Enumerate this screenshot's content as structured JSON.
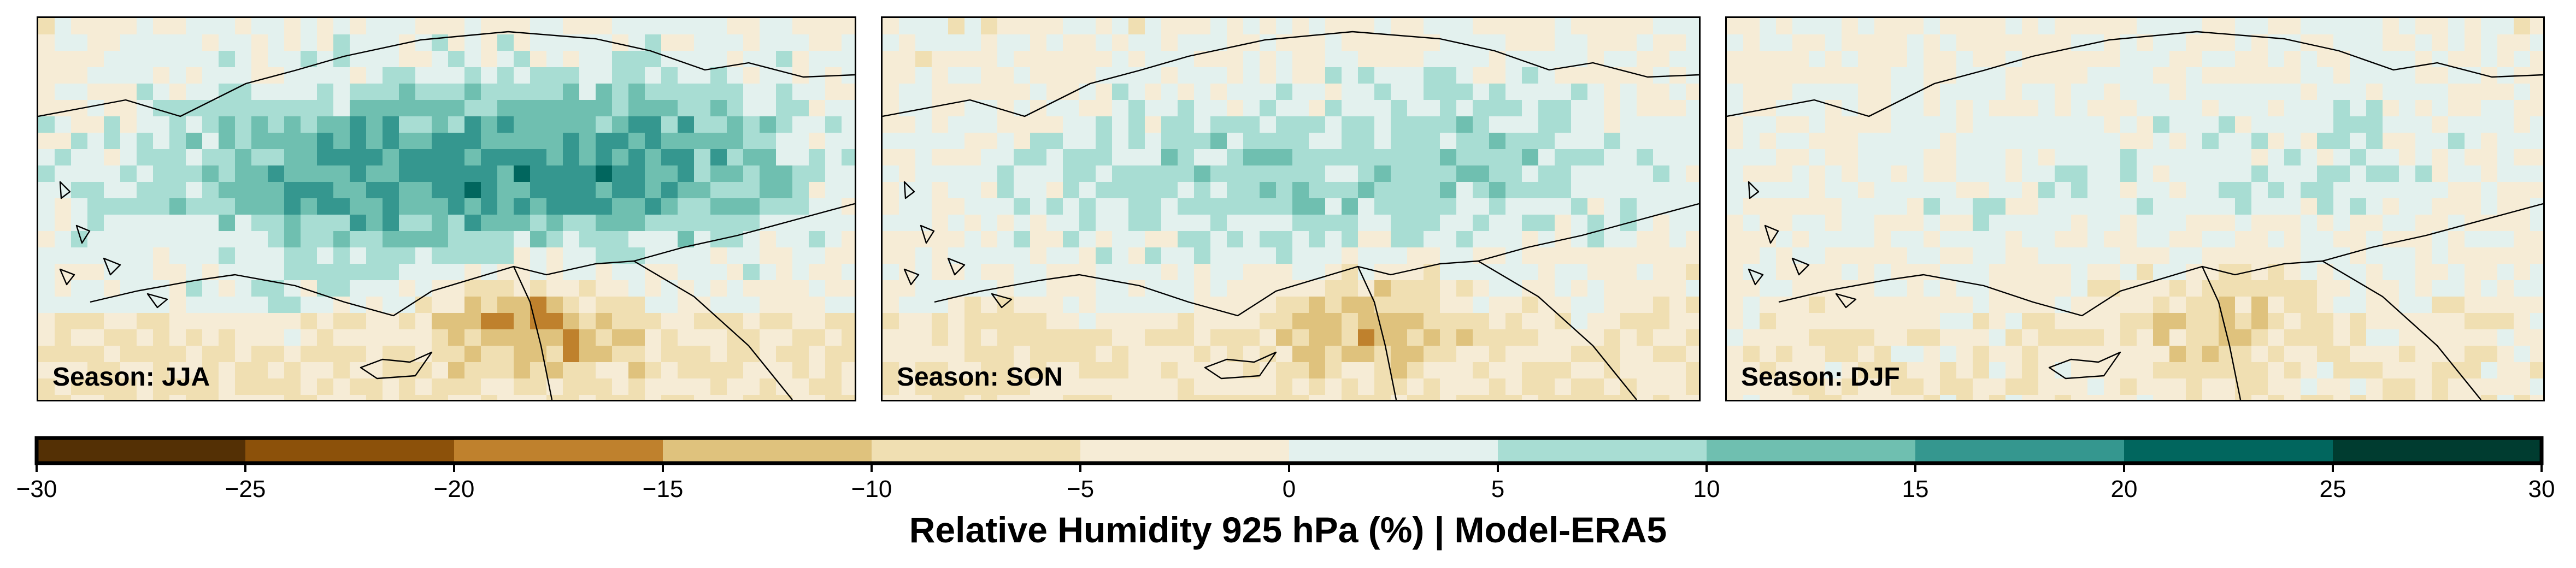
{
  "colorbar": {
    "title": "Relative Humidity 925 hPa (%) | Model-ERA5",
    "ticks": [
      -30,
      -25,
      -20,
      -15,
      -10,
      -5,
      0,
      5,
      10,
      15,
      20,
      25,
      30
    ],
    "tick_labels": [
      "−30",
      "−25",
      "−20",
      "−15",
      "−10",
      "−5",
      "0",
      "5",
      "10",
      "15",
      "20",
      "25",
      "30"
    ],
    "colors": [
      "#543005",
      "#8c510a",
      "#bf812d",
      "#dfc27d",
      "#f0dfb2",
      "#f6ecd6",
      "#e3f1ee",
      "#a8ddd3",
      "#6fbfb0",
      "#35978f",
      "#01665e",
      "#003c30"
    ]
  },
  "panels": [
    {
      "label": "Season: JJA"
    },
    {
      "label": "Season: SON"
    },
    {
      "label": "Season: DJF"
    }
  ]
}
